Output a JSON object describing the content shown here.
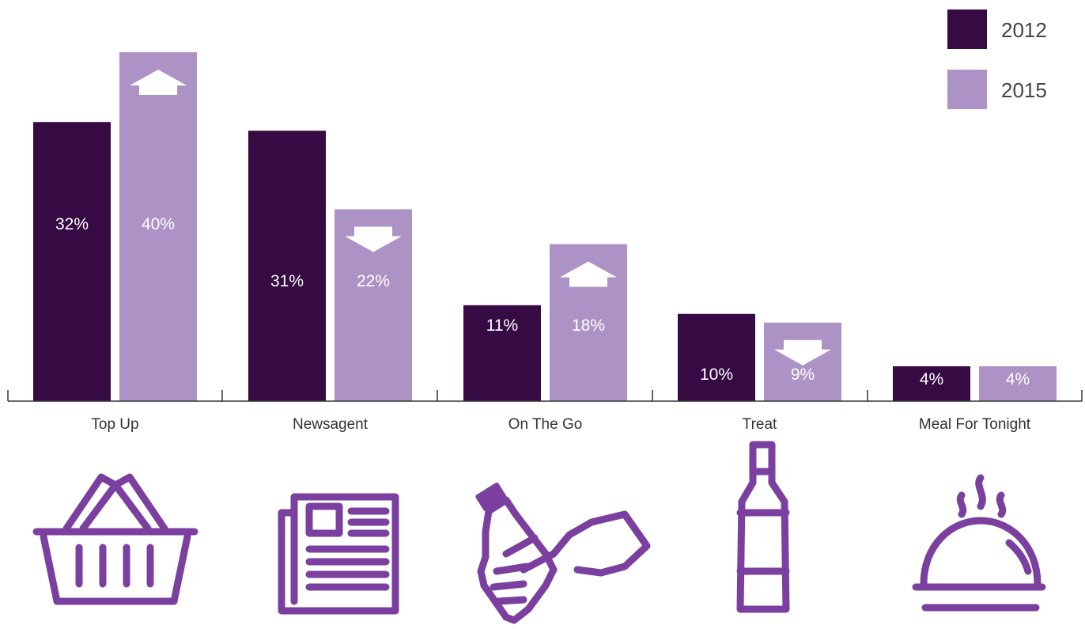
{
  "chart_data": {
    "type": "bar",
    "categories": [
      "Top Up",
      "Newsagent",
      "On The Go",
      "Treat",
      "Meal For Tonight"
    ],
    "series": [
      {
        "name": "2012",
        "values": [
          32,
          31,
          11,
          10,
          4
        ],
        "labels": [
          "32%",
          "31%",
          "11%",
          "10%",
          "4%"
        ]
      },
      {
        "name": "2015",
        "values": [
          40,
          22,
          18,
          9,
          4
        ],
        "labels": [
          "40%",
          "22%",
          "18%",
          "9%",
          "4%"
        ]
      }
    ],
    "trend_2015": [
      "up",
      "down",
      "up",
      "down",
      "none"
    ],
    "legend_position": "top-right",
    "grid": false,
    "colors": {
      "2012": "#360a42",
      "2015": "#ad93c5",
      "icons": "#7b3fa0",
      "axis": "#333333"
    }
  },
  "icons": [
    "basket-icon",
    "newspaper-icon",
    "bottle-in-hand-icon",
    "wine-bottle-icon",
    "food-cloche-icon"
  ]
}
